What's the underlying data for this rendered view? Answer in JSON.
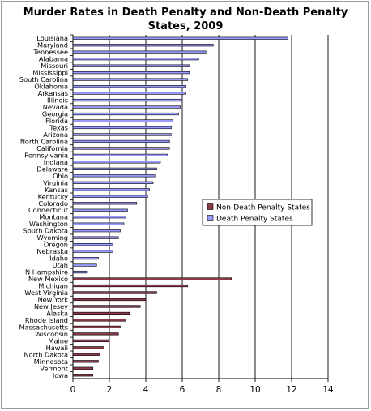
{
  "chart_data": {
    "type": "bar",
    "orientation": "horizontal",
    "title_line1": "Murder Rates in Death Penalty and Non-Death Penalty",
    "title_line2": "States, 2009",
    "xlim": [
      0,
      14
    ],
    "xticks": [
      0,
      2,
      4,
      6,
      8,
      10,
      12,
      14
    ],
    "grid": "vertical",
    "legend_position": "right",
    "series": [
      {
        "name": "Non-Death Penalty States",
        "color": "#8b3a4a"
      },
      {
        "name": "Death Penalty States",
        "color": "#9999ff"
      }
    ],
    "categories": [
      "Louisiana",
      "Maryland",
      "Tennessee",
      "Alabama",
      "Missouri",
      "Mississippi",
      "South Carolina",
      "Oklahoma",
      "Arkansas",
      "Illinois",
      "Nevada",
      "Georgia",
      "Florida",
      "Texas",
      "Arizona",
      "North Carolina",
      "California",
      "Pennsylvania",
      "Indiana",
      "Delaware",
      "Ohio",
      "Virginia",
      "Kansas",
      "Kentucky",
      "Colorado",
      "Connecticut",
      "Montana",
      "Washington",
      "South Dakota",
      "Wyoming",
      "Oregon",
      "Nebraska",
      "Idaho",
      "Utah",
      "N Hampshire",
      "New Mexico",
      "Michigan",
      "West Virginia",
      "New York",
      "New Jesey",
      "Alaska",
      "Rhode Island",
      "Massachusetts",
      "Wisconsin",
      "Maine",
      "Hawaii",
      "North Dakota",
      "Minnesota",
      "Vermont",
      "Iowa"
    ],
    "values": [
      11.8,
      7.7,
      7.3,
      6.9,
      6.4,
      6.4,
      6.3,
      6.2,
      6.2,
      6.0,
      5.9,
      5.8,
      5.5,
      5.4,
      5.4,
      5.3,
      5.3,
      5.2,
      4.8,
      4.6,
      4.5,
      4.4,
      4.2,
      4.1,
      3.5,
      3.0,
      2.9,
      2.8,
      2.6,
      2.5,
      2.2,
      2.2,
      1.4,
      1.3,
      0.8,
      8.7,
      6.3,
      4.6,
      4.0,
      3.7,
      3.1,
      2.9,
      2.6,
      2.5,
      2.0,
      1.7,
      1.5,
      1.4,
      1.1,
      1.1
    ],
    "series_index": [
      1,
      1,
      1,
      1,
      1,
      1,
      1,
      1,
      1,
      1,
      1,
      1,
      1,
      1,
      1,
      1,
      1,
      1,
      1,
      1,
      1,
      1,
      1,
      1,
      1,
      1,
      1,
      1,
      1,
      1,
      1,
      1,
      1,
      1,
      1,
      0,
      0,
      0,
      0,
      0,
      0,
      0,
      0,
      0,
      0,
      0,
      0,
      0,
      0,
      0
    ]
  }
}
